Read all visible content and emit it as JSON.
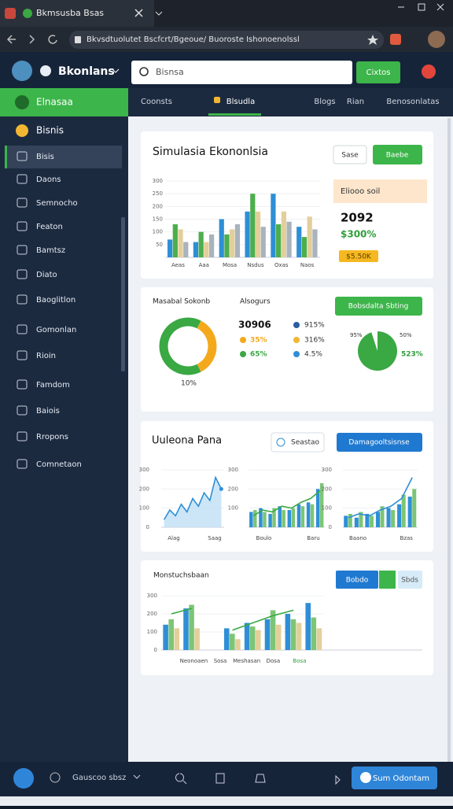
{
  "browser": {
    "tab": "Bkmsusba Bsas",
    "url": "Bkvsdtuolutet Bscfcrt/Bgeoue/ Buoroste Ishonoenolssl"
  },
  "header": {
    "brand": "Bkonlans",
    "search": "Bisnsa",
    "button": "Cixtos"
  },
  "tabs": [
    "Coonsts",
    "Blsudla",
    "Blogs",
    "Rian",
    "Benosonlatas"
  ],
  "sidebar": {
    "active": "Elnasaa",
    "section": "Bisnis",
    "items": [
      "Bisis",
      "Daons",
      "Semnocho",
      "Featon",
      "Bamtsz",
      "Diato",
      "Baoglitlon",
      "Gomonlan",
      "Rioin",
      "Famdom",
      "Baiois",
      "Rropons",
      "Comnetaon"
    ]
  },
  "card1": {
    "title": "Simulasia Ekononlsia",
    "buttons": [
      "Sase",
      "Baebe"
    ],
    "chart": {
      "categories": [
        "Aeas",
        "Aaa",
        "Mosa",
        "Nsdus",
        "Oxas",
        "Naos"
      ],
      "ylim": [
        0,
        300
      ],
      "yticks": [
        50,
        100,
        150,
        200,
        250,
        300
      ],
      "series": [
        {
          "type": "bar",
          "color": "#2e8fd6",
          "values": [
            70,
            60,
            150,
            180,
            250,
            120
          ]
        },
        {
          "type": "bar",
          "color": "#4cae4c",
          "values": [
            130,
            100,
            90,
            250,
            130,
            80
          ]
        },
        {
          "type": "bar",
          "color": "#e3cf9a",
          "values": [
            110,
            60,
            110,
            180,
            180,
            160
          ]
        },
        {
          "type": "bar",
          "color": "#a9b3bd",
          "values": [
            60,
            90,
            130,
            120,
            140,
            110
          ]
        }
      ]
    },
    "panel": {
      "label": "Eliooo soil",
      "value": "2092",
      "change": "$300%",
      "badge": "$5.50K"
    }
  },
  "card2": {
    "labels": [
      "Masabal Sokonb",
      "Alsogurs"
    ],
    "total": "30906",
    "donut": {
      "values": [
        65,
        35
      ],
      "value_labels": [
        "65%",
        "35%"
      ],
      "colors": [
        "#3aa843",
        "#f4a91c"
      ],
      "caption": "10%"
    },
    "legend": [
      "915%",
      "316%",
      "4.5%"
    ],
    "button": "Bobsdalta Sbting",
    "pie": {
      "value": 95,
      "value_label": "95%",
      "color": "#3aa843",
      "notes": [
        "50%",
        "523%"
      ]
    }
  },
  "card3": {
    "title": "Uuleona Pana",
    "buttons": [
      "Seastao",
      "Damagooltsisnse"
    ],
    "charts": [
      {
        "ylim": [
          0,
          300
        ],
        "yticks": [
          0,
          100,
          200,
          300
        ],
        "xlabels": [
          "Alag",
          "Saag"
        ],
        "series": [
          {
            "type": "area",
            "color": "#2e8fd6",
            "values": [
              40,
              90,
              60,
              120,
              80,
              150,
              110,
              180,
              140,
              260,
              200
            ]
          }
        ]
      },
      {
        "ylim": [
          0,
          300
        ],
        "yticks": [
          100,
          200,
          300
        ],
        "xlabels": [
          "Boulo",
          "Baru"
        ],
        "series": [
          {
            "type": "bar",
            "color": "#2e8fd6",
            "values": [
              80,
              100,
              70,
              110,
              90,
              120,
              130,
              200
            ]
          },
          {
            "type": "bar",
            "color": "#7cc576",
            "values": [
              90,
              80,
              100,
              90,
              100,
              110,
              120,
              230
            ]
          },
          {
            "type": "line",
            "color": "#3aa843",
            "values": [
              60,
              90,
              80,
              110,
              100,
              130,
              150,
              190
            ]
          }
        ]
      },
      {
        "ylim": [
          0,
          300
        ],
        "yticks": [
          0,
          100,
          200,
          300
        ],
        "xlabels": [
          "Baano",
          "Bzas"
        ],
        "series": [
          {
            "type": "bar",
            "color": "#2e8fd6",
            "values": [
              60,
              50,
              70,
              80,
              100,
              120,
              160
            ]
          },
          {
            "type": "bar",
            "color": "#7cc576",
            "values": [
              70,
              80,
              60,
              110,
              90,
              170,
              200
            ]
          },
          {
            "type": "line",
            "color": "#2e8fd6",
            "values": [
              50,
              70,
              60,
              90,
              110,
              150,
              260
            ]
          }
        ]
      }
    ]
  },
  "card4": {
    "title": "Monstuchsbaan",
    "buttons": [
      "Bobdo",
      "Sbds"
    ],
    "chart": {
      "ylim": [
        0,
        300
      ],
      "yticks": [
        0,
        100,
        200,
        300
      ],
      "xlabels": [
        "Neonoaen",
        "Sosa",
        "Meshasan",
        "Dosa",
        "Bosa"
      ],
      "series": [
        {
          "type": "bar",
          "color": "#2e8fd6",
          "values": [
            140,
            230,
            0,
            120,
            150,
            170,
            200,
            260
          ]
        },
        {
          "type": "bar",
          "color": "#7cc576",
          "values": [
            170,
            250,
            0,
            90,
            130,
            220,
            170,
            180
          ]
        },
        {
          "type": "bar",
          "color": "#e3cf9a",
          "values": [
            120,
            120,
            0,
            60,
            110,
            140,
            150,
            120
          ]
        },
        {
          "type": "line",
          "color": "#3aa843",
          "values": [
            200,
            230,
            null,
            110,
            150,
            190,
            220,
            null
          ]
        }
      ]
    }
  },
  "bottom": {
    "status": "Gauscoo sbsz",
    "button": "Sum Odontam"
  }
}
